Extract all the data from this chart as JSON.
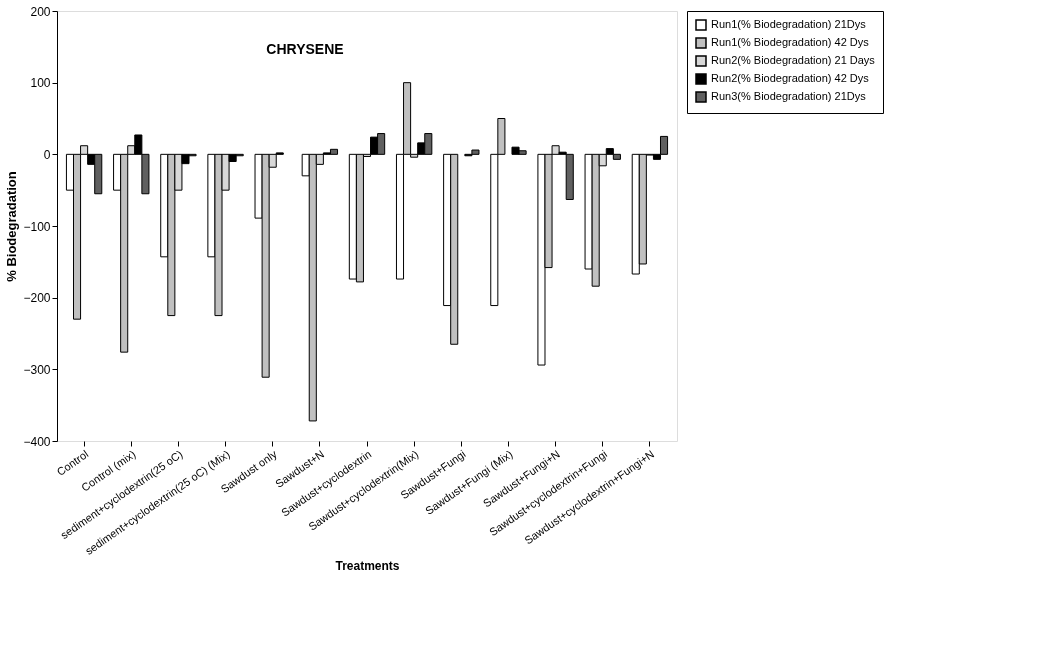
{
  "chart_data": {
    "type": "bar",
    "title": "CHRYSENE",
    "xlabel": "Treatments",
    "ylabel": "% Biodegradation",
    "categories": [
      "Control",
      "Control (mix)",
      "sediment+cyclodextrin(25 oC)",
      "sediment+cyclodextrin(25 oC) (Mix)",
      "Sawdust only",
      "Sawdust+N",
      "Sawdust+cyclodextrin",
      "Sawdust+cyclodextrin(Mix)",
      "Sawdust+Fungi",
      "Sawdust+Fungi (Mix)",
      "Sawdust+Fungi+N",
      "Sawdust+cyclodextrin+Fungi",
      "Sawdust+cyclodextrin+Fungi+N"
    ],
    "series": [
      {
        "name": "Run1(% Biodegradation) 21Dys",
        "color": "#ffffff",
        "values": [
          -50,
          -50,
          -143,
          -143,
          -89,
          -30,
          -174,
          -174,
          -211,
          -211,
          -294,
          -160,
          -167
        ]
      },
      {
        "name": "Run1(% Biodegradation) 42 Dys",
        "color": "#c0c0c0",
        "values": [
          -230,
          -276,
          -225,
          -225,
          -311,
          -372,
          -178,
          100,
          -265,
          50,
          -158,
          -184,
          -153
        ]
      },
      {
        "name": "Run2(% Biodegradation) 21 Days",
        "color": "#d8d8d8",
        "values": [
          12,
          12,
          -50,
          -50,
          -18,
          -14,
          -3,
          -4,
          null,
          null,
          12,
          -16,
          -1
        ]
      },
      {
        "name": "Run2(% Biodegradation) 42 Dys",
        "color": "#000000",
        "values": [
          -14,
          27,
          -13,
          -10,
          2,
          2,
          24,
          16,
          -2,
          10,
          3,
          8,
          -7
        ]
      },
      {
        "name": "Run3(% Biodegradation) 21Dys",
        "color": "#606060",
        "values": [
          -55,
          -55,
          -2,
          -2,
          null,
          7,
          29,
          29,
          6,
          5,
          -63,
          -7,
          25
        ]
      }
    ],
    "ylim": [
      -400,
      200
    ],
    "yticks": [
      -400,
      -300,
      -200,
      -100,
      0,
      100,
      200
    ],
    "grid": false,
    "legend": "right"
  }
}
